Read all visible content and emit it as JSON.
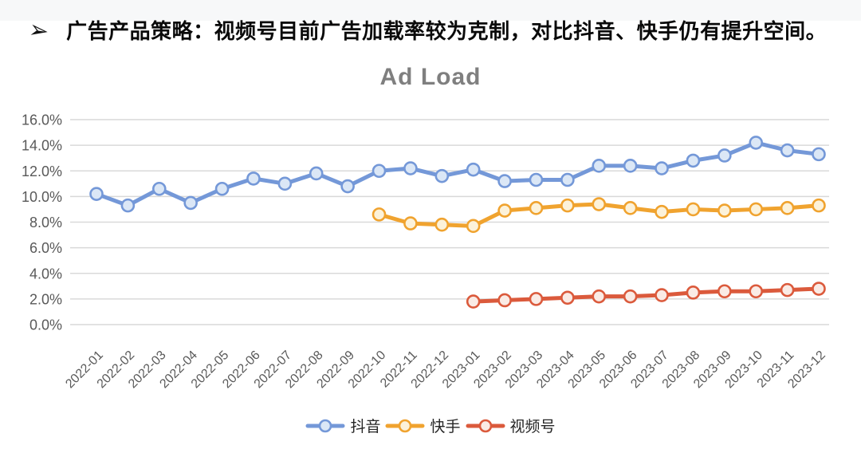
{
  "header": {
    "bullet_icon": "arrow-bullet",
    "title": "广告产品策略：视频号目前广告加载率较为克制，对比抖音、快手仍有提升空间。"
  },
  "chart_data": {
    "type": "line",
    "title": "Ad Load",
    "x": [
      "2022-01",
      "2022-02",
      "2022-03",
      "2022-04",
      "2022-05",
      "2022-06",
      "2022-07",
      "2022-08",
      "2022-09",
      "2022-10",
      "2022-11",
      "2022-12",
      "2023-01",
      "2023-02",
      "2023-03",
      "2023-04",
      "2023-05",
      "2023-06",
      "2023-07",
      "2023-08",
      "2023-09",
      "2023-10",
      "2023-11",
      "2023-12"
    ],
    "series": [
      {
        "key": "douyin",
        "name": "抖音",
        "color": "#7498D8",
        "marker_fill": "#DBE7F6",
        "values": [
          10.2,
          9.3,
          10.6,
          9.5,
          10.6,
          11.4,
          11.0,
          11.8,
          10.8,
          12.0,
          12.2,
          11.6,
          12.1,
          11.2,
          11.3,
          11.3,
          12.4,
          12.4,
          12.2,
          12.8,
          13.2,
          14.2,
          13.6,
          13.3
        ]
      },
      {
        "key": "kuaishou",
        "name": "快手",
        "color": "#F0A32F",
        "marker_fill": "#FCF2DA",
        "values": [
          null,
          null,
          null,
          null,
          null,
          null,
          null,
          null,
          null,
          8.6,
          7.9,
          7.8,
          7.7,
          8.9,
          9.1,
          9.3,
          9.4,
          9.1,
          8.8,
          9.0,
          8.9,
          9.0,
          9.1,
          9.3
        ]
      },
      {
        "key": "shipinhao",
        "name": "视频号",
        "color": "#DB5A3C",
        "marker_fill": "#FAEBE5",
        "values": [
          null,
          null,
          null,
          null,
          null,
          null,
          null,
          null,
          null,
          null,
          null,
          null,
          1.8,
          1.9,
          2.0,
          2.1,
          2.2,
          2.2,
          2.3,
          2.5,
          2.6,
          2.6,
          2.7,
          2.8
        ]
      }
    ],
    "ylim": [
      0,
      16
    ],
    "ytick_step": 2,
    "yticks": [
      "0.0%",
      "2.0%",
      "4.0%",
      "6.0%",
      "8.0%",
      "10.0%",
      "12.0%",
      "14.0%",
      "16.0%"
    ],
    "grid": true,
    "legend_position": "bottom",
    "colors": {
      "grid": "#D9D9D9",
      "axis_text": "#595959",
      "chart_title": "#7F7F7F",
      "header_text": "#0A0A0A"
    }
  }
}
